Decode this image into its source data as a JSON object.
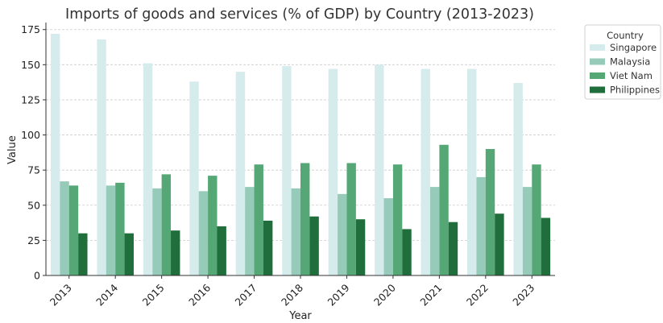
{
  "chart_data": {
    "type": "bar",
    "title": "Imports of goods and services (% of GDP) by Country (2013-2023)",
    "xlabel": "Year",
    "ylabel": "Value",
    "categories": [
      "2013",
      "2014",
      "2015",
      "2016",
      "2017",
      "2018",
      "2019",
      "2020",
      "2021",
      "2022",
      "2023"
    ],
    "series": [
      {
        "name": "Singapore",
        "color": "#d6ecec",
        "values": [
          172,
          168,
          151,
          138,
          145,
          149,
          147,
          150,
          147,
          147,
          137
        ]
      },
      {
        "name": "Malaysia",
        "color": "#96cbb9",
        "values": [
          67,
          64,
          62,
          60,
          63,
          62,
          58,
          55,
          63,
          70,
          63
        ]
      },
      {
        "name": "Viet Nam",
        "color": "#55a775",
        "values": [
          64,
          66,
          72,
          71,
          79,
          80,
          80,
          79,
          93,
          90,
          79
        ]
      },
      {
        "name": "Philippines",
        "color": "#1f6e3b",
        "values": [
          30,
          30,
          32,
          35,
          39,
          42,
          40,
          33,
          38,
          44,
          41
        ]
      }
    ],
    "ylim": [
      0,
      180
    ],
    "yticks": [
      0,
      25,
      50,
      75,
      100,
      125,
      150,
      175
    ],
    "grid": "y-dashed",
    "legend": {
      "title": "Country",
      "placement": "outside-top-right"
    }
  }
}
